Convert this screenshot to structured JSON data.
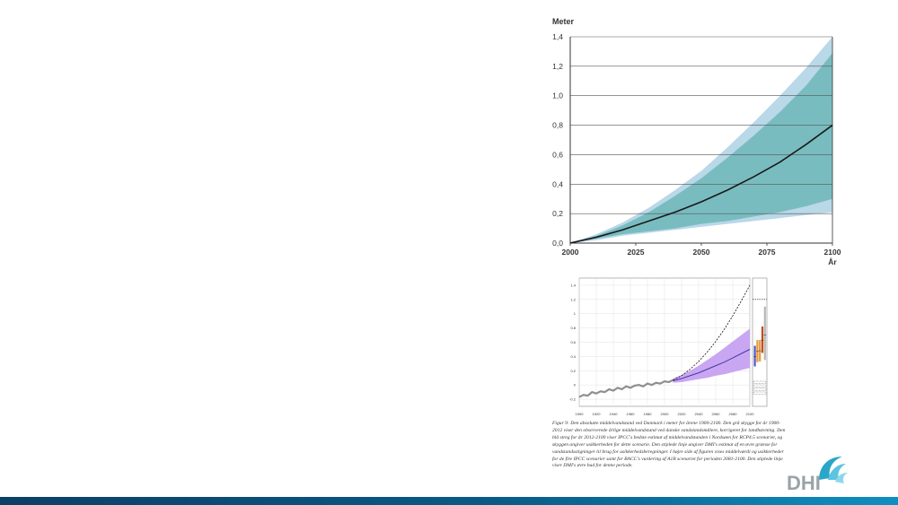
{
  "slide": {
    "caption": "Figur 9: Den absolutte middelvandstand ved Danmark i meter for årene 1900-2100. Den grå skygge for år 1900-2012 viser den observerede årlige middelvandstand ved danske vandstandsmålere, korrigeret for landhævning. Den blå streg for år 2012-2100 viser IPCC's bedste estimat af middelvandstanden i Nordsøen for RCP4.5 scenariet, og skyggen angiver usikkerheden for dette scenarie. Den stiplede linje angiver DMI's estimat af en øvre grænse for vandstandsstigninger til brug for usikkerhedsberegninger. I højre side af figuren vises middelværdi og usikkerheder for de fire IPCC scenarier samt for BACC's vurdering af A1B scenariet for perioden 2081-2100. Den stiplede linje viser DMI's øvre bud for denne periode.",
    "logo_text": "DHI"
  },
  "colors": {
    "outer_band": "#b9d8e8",
    "inner_band": "#79bcc0",
    "median_line": "#1a1a1a",
    "observed": "#8f8f8f",
    "projection_band": "#c8a6f2",
    "projection_line": "#3a2a9a",
    "bar_blue": "#4f58c8",
    "bar_orange": "#e59a3c",
    "bar_red": "#c84a1e",
    "bar_gray": "#b8b8b8",
    "footer_band": "#0a5a86",
    "logo_teal": "#2aa6c8",
    "logo_gray": "#9aa3a8"
  },
  "chart_data": [
    {
      "type": "area",
      "ylabel": "Meter",
      "xlabel": "År",
      "xlim": [
        2000,
        2100
      ],
      "ylim": [
        0,
        1.4
      ],
      "x_ticks": [
        2000,
        2025,
        2050,
        2075,
        2100
      ],
      "y_ticks": [
        0.0,
        0.2,
        0.4,
        0.6,
        0.8,
        1.0,
        1.2,
        1.4
      ],
      "x_tick_labels": [
        "2000",
        "2025",
        "2050",
        "2075",
        "2100"
      ],
      "y_tick_labels": [
        "0,0",
        "0,2",
        "0,4",
        "0,6",
        "0,8",
        "1,0",
        "1,2",
        "1,4"
      ],
      "grid": "horizontal",
      "x": [
        2000,
        2010,
        2020,
        2030,
        2040,
        2050,
        2060,
        2070,
        2080,
        2090,
        2100
      ],
      "series": [
        {
          "role": "outer-band-upper",
          "values": [
            0,
            0.06,
            0.14,
            0.24,
            0.36,
            0.49,
            0.65,
            0.82,
            1.0,
            1.19,
            1.4
          ]
        },
        {
          "role": "inner-band-upper",
          "values": [
            0,
            0.05,
            0.12,
            0.21,
            0.32,
            0.44,
            0.58,
            0.73,
            0.89,
            1.07,
            1.29
          ]
        },
        {
          "role": "median",
          "values": [
            0,
            0.04,
            0.09,
            0.15,
            0.21,
            0.28,
            0.36,
            0.45,
            0.55,
            0.67,
            0.8
          ]
        },
        {
          "role": "inner-band-lower",
          "values": [
            0,
            0.03,
            0.06,
            0.08,
            0.1,
            0.13,
            0.15,
            0.18,
            0.21,
            0.25,
            0.3
          ]
        },
        {
          "role": "outer-band-lower",
          "values": [
            0,
            0.02,
            0.05,
            0.07,
            0.09,
            0.11,
            0.13,
            0.15,
            0.17,
            0.19,
            0.21
          ]
        }
      ]
    },
    {
      "type": "line",
      "xlim": [
        1900,
        2100
      ],
      "ylim": [
        -0.3,
        1.5
      ],
      "x_ticks": [
        1900,
        1920,
        1940,
        1960,
        1980,
        2000,
        2020,
        2040,
        2060,
        2080,
        2100
      ],
      "x_tick_labels": [
        "1900",
        "1920",
        "1940",
        "1960",
        "1980",
        "2000",
        "2020",
        "2040",
        "2060",
        "2080",
        "2100"
      ],
      "y_ticks": [
        -0.2,
        0,
        0.2,
        0.4,
        0.6,
        0.8,
        1.0,
        1.2,
        1.4
      ],
      "y_tick_labels": [
        "-0.2",
        "0",
        "0.2",
        "0.4",
        "0.6",
        "0.8",
        "1",
        "1.2",
        "1.4"
      ],
      "grid": "both",
      "observed": {
        "x": [
          1900,
          1905,
          1910,
          1915,
          1920,
          1925,
          1930,
          1935,
          1940,
          1945,
          1950,
          1955,
          1960,
          1965,
          1970,
          1975,
          1980,
          1985,
          1990,
          1995,
          2000,
          2005,
          2010
        ],
        "values": [
          -0.17,
          -0.14,
          -0.15,
          -0.1,
          -0.12,
          -0.09,
          -0.1,
          -0.06,
          -0.08,
          -0.04,
          -0.06,
          -0.02,
          -0.04,
          -0.01,
          0.0,
          -0.02,
          0.02,
          0.0,
          0.03,
          0.02,
          0.05,
          0.04,
          0.07
        ]
      },
      "projection": {
        "x": [
          2010,
          2020,
          2030,
          2040,
          2050,
          2060,
          2070,
          2080,
          2090,
          2100
        ],
        "values": [
          0.06,
          0.09,
          0.13,
          0.17,
          0.22,
          0.27,
          0.32,
          0.38,
          0.44,
          0.5
        ],
        "upper": [
          0.09,
          0.14,
          0.2,
          0.27,
          0.35,
          0.43,
          0.52,
          0.61,
          0.7,
          0.79
        ],
        "lower": [
          0.03,
          0.04,
          0.06,
          0.08,
          0.1,
          0.13,
          0.15,
          0.18,
          0.21,
          0.24
        ]
      },
      "upper_bound": {
        "x": [
          2010,
          2020,
          2030,
          2040,
          2050,
          2060,
          2070,
          2080,
          2090,
          2100
        ],
        "values": [
          0.07,
          0.13,
          0.22,
          0.33,
          0.46,
          0.61,
          0.78,
          0.97,
          1.18,
          1.4
        ]
      },
      "scenario_ranges_2081_2100": [
        {
          "color": "#4f58c8",
          "low": 0.26,
          "high": 0.55,
          "mean": 0.4
        },
        {
          "color": "#e59a3c",
          "low": 0.32,
          "high": 0.63,
          "mean": 0.47
        },
        {
          "color": "#e59a3c",
          "low": 0.33,
          "high": 0.63,
          "mean": 0.48
        },
        {
          "color": "#c84a1e",
          "low": 0.45,
          "high": 0.82,
          "mean": 0.63
        },
        {
          "color": "#b8b8b8",
          "low": 0.35,
          "high": 1.1,
          "mean": 0.7
        }
      ],
      "dmi_upper_2081_2100": 1.2
    }
  ]
}
